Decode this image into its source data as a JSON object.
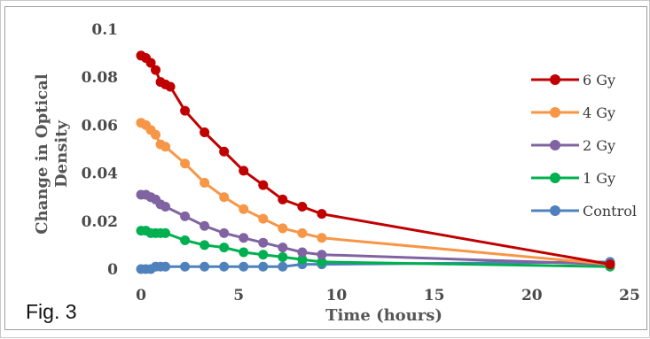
{
  "figure_label": "Fig. 3",
  "chart_data": {
    "type": "line",
    "title": "",
    "xlabel": "Time (hours)",
    "ylabel": "Change in Optical Density",
    "xlim": [
      0,
      25
    ],
    "ylim": [
      0,
      0.1
    ],
    "x_ticks": [
      "0",
      "5",
      "10",
      "15",
      "20",
      "25"
    ],
    "y_ticks": [
      "0",
      "0.02",
      "0.04",
      "0.06",
      "0.08",
      "0.1"
    ],
    "grid": false,
    "legend_position": "right",
    "series": [
      {
        "name": "6 Gy",
        "color": "#c00000",
        "points": [
          [
            0,
            0.089
          ],
          [
            0.25,
            0.088
          ],
          [
            0.5,
            0.086
          ],
          [
            0.75,
            0.083
          ],
          [
            1.0,
            0.078
          ],
          [
            1.25,
            0.077
          ],
          [
            1.5,
            0.076
          ],
          [
            2.25,
            0.066
          ],
          [
            3.25,
            0.057
          ],
          [
            4.25,
            0.049
          ],
          [
            5.25,
            0.041
          ],
          [
            6.25,
            0.035
          ],
          [
            7.25,
            0.029
          ],
          [
            8.25,
            0.026
          ],
          [
            9.25,
            0.023
          ],
          [
            24,
            0.002
          ]
        ]
      },
      {
        "name": "4 Gy",
        "color": "#f79646",
        "points": [
          [
            0,
            0.061
          ],
          [
            0.25,
            0.06
          ],
          [
            0.5,
            0.058
          ],
          [
            0.75,
            0.056
          ],
          [
            1.0,
            0.052
          ],
          [
            1.25,
            0.051
          ],
          [
            2.25,
            0.044
          ],
          [
            3.25,
            0.036
          ],
          [
            4.25,
            0.03
          ],
          [
            5.25,
            0.025
          ],
          [
            6.25,
            0.021
          ],
          [
            7.25,
            0.017
          ],
          [
            8.25,
            0.015
          ],
          [
            9.25,
            0.013
          ],
          [
            24,
            0.002
          ]
        ]
      },
      {
        "name": "2 Gy",
        "color": "#8064a2",
        "points": [
          [
            0,
            0.031
          ],
          [
            0.25,
            0.031
          ],
          [
            0.5,
            0.03
          ],
          [
            0.75,
            0.029
          ],
          [
            1.0,
            0.027
          ],
          [
            1.25,
            0.026
          ],
          [
            2.25,
            0.022
          ],
          [
            3.25,
            0.018
          ],
          [
            4.25,
            0.015
          ],
          [
            5.25,
            0.013
          ],
          [
            6.25,
            0.011
          ],
          [
            7.25,
            0.009
          ],
          [
            8.25,
            0.007
          ],
          [
            9.25,
            0.006
          ],
          [
            24,
            0.002
          ]
        ]
      },
      {
        "name": "1 Gy",
        "color": "#00b050",
        "points": [
          [
            0,
            0.016
          ],
          [
            0.25,
            0.016
          ],
          [
            0.5,
            0.015
          ],
          [
            0.75,
            0.015
          ],
          [
            1.0,
            0.015
          ],
          [
            1.25,
            0.015
          ],
          [
            2.25,
            0.012
          ],
          [
            3.25,
            0.01
          ],
          [
            4.25,
            0.009
          ],
          [
            5.25,
            0.007
          ],
          [
            6.25,
            0.006
          ],
          [
            7.25,
            0.005
          ],
          [
            8.25,
            0.004
          ],
          [
            9.25,
            0.003
          ],
          [
            24,
            0.001
          ]
        ]
      },
      {
        "name": "Control",
        "color": "#4f81bd",
        "points": [
          [
            0,
            0.0
          ],
          [
            0.25,
            0.0
          ],
          [
            0.5,
            0.0
          ],
          [
            0.75,
            0.001
          ],
          [
            1.0,
            0.001
          ],
          [
            1.25,
            0.001
          ],
          [
            2.25,
            0.001
          ],
          [
            3.25,
            0.001
          ],
          [
            4.25,
            0.001
          ],
          [
            5.25,
            0.001
          ],
          [
            6.25,
            0.001
          ],
          [
            7.25,
            0.001
          ],
          [
            8.25,
            0.002
          ],
          [
            9.25,
            0.002
          ],
          [
            24,
            0.003
          ]
        ]
      }
    ]
  }
}
